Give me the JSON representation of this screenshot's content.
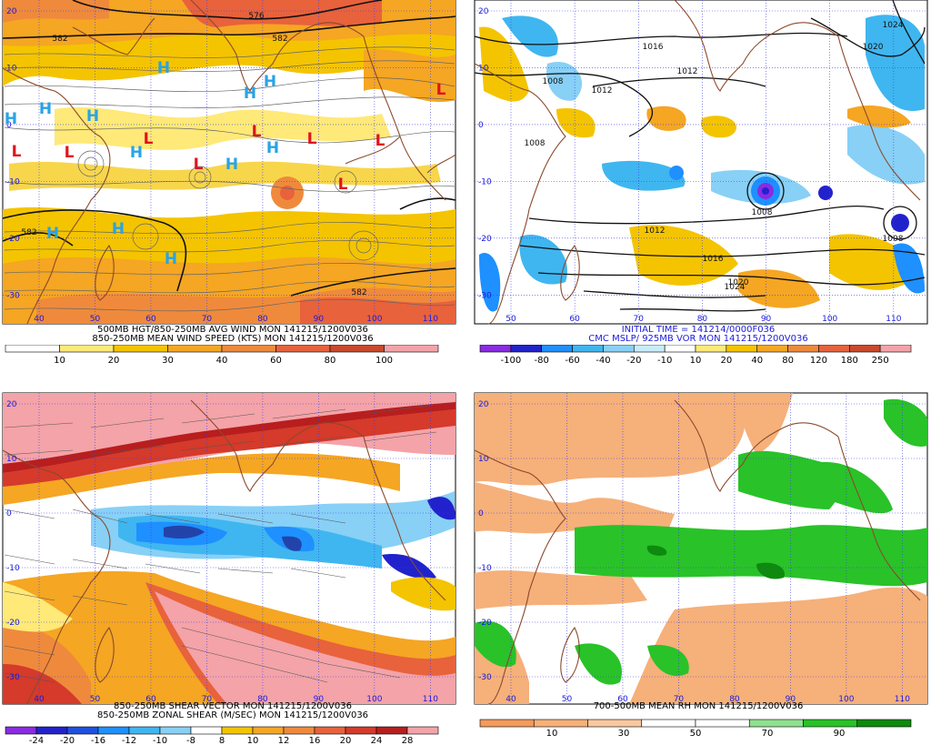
{
  "palette": {
    "coast": "#8b4a2b",
    "grid": "#3a3ae0",
    "contour": "#111111",
    "streamline": "#666666",
    "high": "#29a3e6",
    "low": "#e0141e",
    "label_blue": "#1a1add"
  },
  "panels": [
    {
      "id": "wind",
      "lat_labels": [
        "20",
        "10",
        "0",
        "-10",
        "-20",
        "-30"
      ],
      "lon_labels": [
        "40",
        "50",
        "60",
        "70",
        "80",
        "90",
        "100",
        "110"
      ],
      "caption_lines": [
        "500MB HGT/850-250MB AVG WIND MON 141215/1200V036",
        "850-250MB MEAN WIND SPEED (KTS) MON 141215/1200V036"
      ],
      "contour_labels": [
        "582",
        "582",
        "582",
        "582",
        "576"
      ],
      "highs": [
        "H",
        "H",
        "H",
        "H",
        "H",
        "H",
        "H",
        "H",
        "H",
        "H",
        "H",
        "H"
      ],
      "lows": [
        "L",
        "L",
        "L",
        "L",
        "L",
        "L",
        "L",
        "L",
        "L"
      ],
      "colorbar": {
        "colors": [
          "#ffffff",
          "#ffe978",
          "#f4c400",
          "#f5a623",
          "#ef8a3c",
          "#e8623c",
          "#c94a2c",
          "#f4a3a8"
        ],
        "labels": [
          "10",
          "20",
          "30",
          "40",
          "60",
          "80",
          "100"
        ]
      }
    },
    {
      "id": "mslp",
      "lat_labels": [
        "20",
        "10",
        "0",
        "-10",
        "-20",
        "-30"
      ],
      "lon_labels": [
        "50",
        "60",
        "70",
        "80",
        "90",
        "100",
        "110"
      ],
      "caption_lines": [
        "INITIAL TIME = 141214/0000F036",
        "CMC MSLP/ 925MB VOR MON 141215/1200V036"
      ],
      "contour_labels": [
        "1016",
        "1012",
        "1024",
        "1020",
        "1012",
        "1008",
        "1008",
        "1008",
        "1012",
        "1016",
        "1020",
        "1024",
        "1008"
      ],
      "colorbar": {
        "colors": [
          "#8a2be2",
          "#2222cc",
          "#1e90ff",
          "#3fb6f0",
          "#88d0f6",
          "#c8ecfb",
          "#ffffff",
          "#ffe978",
          "#f4c400",
          "#f5a623",
          "#ef8a3c",
          "#e8623c",
          "#c94a2c",
          "#f4a3a8"
        ],
        "labels": [
          "-100",
          "-80",
          "-60",
          "-40",
          "-20",
          "-10",
          "10",
          "20",
          "40",
          "80",
          "120",
          "180",
          "250"
        ]
      }
    },
    {
      "id": "shear",
      "lat_labels": [
        "20",
        "10",
        "0",
        "-10",
        "-20",
        "-30"
      ],
      "lon_labels": [
        "40",
        "50",
        "60",
        "70",
        "80",
        "90",
        "100",
        "110"
      ],
      "caption_lines": [
        "850-250MB SHEAR VECTOR MON 141215/1200V036",
        "850-250MB ZONAL SHEAR (M/SEC) MON 141215/1200V036"
      ],
      "colorbar": {
        "colors": [
          "#8a2be2",
          "#2222cc",
          "#1e50e0",
          "#1e90ff",
          "#3fb6f0",
          "#88d0f6",
          "#ffffff",
          "#f4c400",
          "#f5a623",
          "#ef8a3c",
          "#e8623c",
          "#d53a2a",
          "#b81e1e",
          "#f4a3a8"
        ],
        "labels": [
          "-24",
          "-20",
          "-16",
          "-12",
          "-10",
          "-8",
          "8",
          "10",
          "12",
          "16",
          "20",
          "24",
          "28"
        ]
      }
    },
    {
      "id": "rh",
      "lat_labels": [
        "20",
        "10",
        "0",
        "-10",
        "-20",
        "-30"
      ],
      "lon_labels": [
        "40",
        "50",
        "60",
        "70",
        "80",
        "90",
        "100",
        "110"
      ],
      "caption_lines": [
        "700-500MB MEAN RH MON 141215/1200V036"
      ],
      "colorbar": {
        "colors": [
          "#f29b5e",
          "#f6b07a",
          "#f9c89f",
          "#ffffff",
          "#ffffff",
          "#8fe08f",
          "#29c229",
          "#0e8a0e"
        ],
        "labels": [
          "10",
          "30",
          "50",
          "70",
          "90"
        ]
      }
    }
  ]
}
